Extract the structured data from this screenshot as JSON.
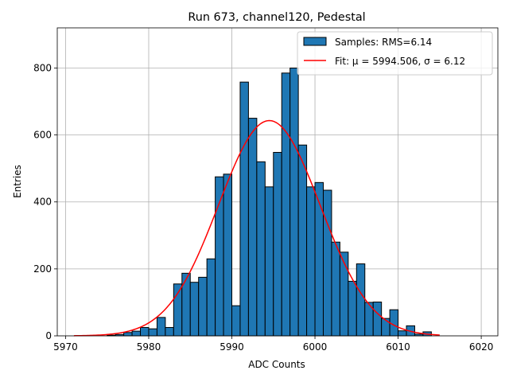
{
  "chart_data": {
    "type": "bar",
    "title": "Run 673, channel120, Pedestal",
    "xlabel": "ADC Counts",
    "ylabel": "Entries",
    "xlim": [
      5969,
      6022
    ],
    "ylim": [
      0,
      920
    ],
    "xticks": [
      5970,
      5980,
      5990,
      6000,
      6010,
      6020
    ],
    "yticks": [
      0,
      200,
      400,
      600,
      800
    ],
    "grid": true,
    "legend_position": "top-right",
    "bin_width": 1,
    "bins": [
      [
        5975,
        2
      ],
      [
        5976,
        4
      ],
      [
        5977,
        10
      ],
      [
        5978,
        14
      ],
      [
        5979,
        25
      ],
      [
        5980,
        21
      ],
      [
        5981,
        55
      ],
      [
        5982,
        25
      ],
      [
        5983,
        155
      ],
      [
        5984,
        187
      ],
      [
        5985,
        160
      ],
      [
        5986,
        175
      ],
      [
        5987,
        230
      ],
      [
        5988,
        475
      ],
      [
        5989,
        483
      ],
      [
        5990,
        90
      ],
      [
        5991,
        758
      ],
      [
        5992,
        650
      ],
      [
        5993,
        520
      ],
      [
        5994,
        445
      ],
      [
        5995,
        548
      ],
      [
        5996,
        785
      ],
      [
        5997,
        800
      ],
      [
        5998,
        570
      ],
      [
        5999,
        445
      ],
      [
        6000,
        458
      ],
      [
        6001,
        435
      ],
      [
        6002,
        280
      ],
      [
        6003,
        250
      ],
      [
        6004,
        163
      ],
      [
        6005,
        215
      ],
      [
        6006,
        100
      ],
      [
        6007,
        101
      ],
      [
        6008,
        52
      ],
      [
        6009,
        78
      ],
      [
        6010,
        15
      ],
      [
        6011,
        30
      ],
      [
        6012,
        5
      ],
      [
        6013,
        12
      ]
    ],
    "series": [
      {
        "name": "Samples: RMS=6.14",
        "kind": "histogram",
        "color": "#1f77b4",
        "edge_color": "#000000"
      },
      {
        "name": "Fit: μ = 5994.506, σ = 6.12",
        "kind": "gaussian",
        "color": "#ff0000",
        "mu": 5994.506,
        "sigma": 6.12,
        "amplitude": 643,
        "x_range": [
          5971,
          6015
        ]
      }
    ]
  }
}
